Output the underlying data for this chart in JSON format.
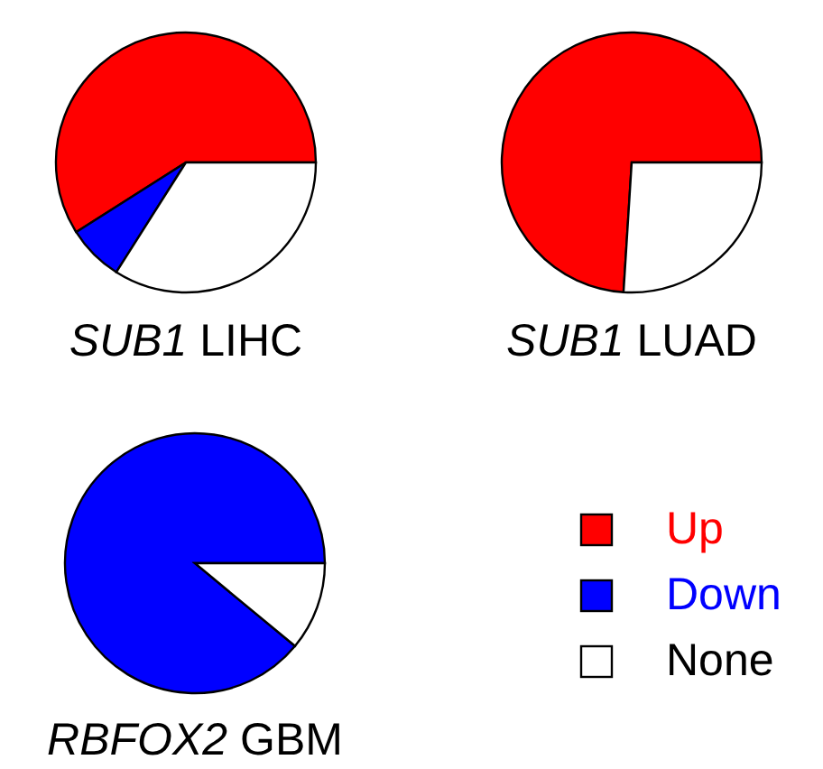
{
  "chart_data": [
    {
      "type": "pie",
      "title": "SUB1 LIHC",
      "categories": [
        null,
        null,
        null
      ],
      "values": [
        59,
        7,
        34
      ],
      "colors": [
        "#ff0000",
        "#0000ff",
        "#ffffff"
      ],
      "legend": false
    },
    {
      "type": "pie",
      "title": "SUB1 LUAD",
      "categories": [
        null,
        null
      ],
      "values": [
        74,
        26
      ],
      "colors": [
        "#ff0000",
        "#ffffff"
      ],
      "legend": false
    },
    {
      "type": "pie",
      "title": "RBFOX2 GBM",
      "categories": [
        "Up",
        "Down",
        "None"
      ],
      "values": [
        0,
        89,
        11
      ],
      "colors": [
        "#ff0000",
        "#0000ff",
        "#ffffff"
      ],
      "legend": "right"
    }
  ]
}
